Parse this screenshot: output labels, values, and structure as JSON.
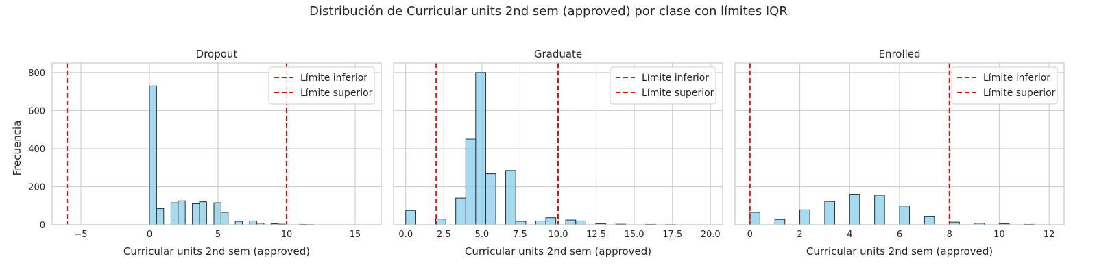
{
  "chart_data": {
    "type": "bar",
    "title": "Distribución de Curricular units 2nd sem (approved) por clase con límites IQR",
    "ylabel": "Frecuencia",
    "ylim": [
      0,
      850
    ],
    "yticks": [
      0,
      200,
      400,
      600,
      800
    ],
    "grid": true,
    "bar_color": "#87CEEB",
    "bar_edge_color": "#2b2b2b",
    "limit_color": "#ff0000",
    "legend": {
      "position": "upper-right",
      "entries": [
        "Límite inferior",
        "Límite superior"
      ]
    },
    "panels": [
      {
        "title": "Dropout",
        "xlabel": "Curricular units 2nd sem (approved)",
        "xlim": [
          -7.1,
          16.9
        ],
        "xticks": [
          -5,
          0,
          5,
          10,
          15
        ],
        "lower_limit": -6,
        "upper_limit": 10,
        "bin_width": 0.52,
        "bars": [
          {
            "x": 0.0,
            "value": 730
          },
          {
            "x": 0.52,
            "value": 85
          },
          {
            "x": 1.57,
            "value": 115
          },
          {
            "x": 2.09,
            "value": 125
          },
          {
            "x": 3.13,
            "value": 110
          },
          {
            "x": 3.65,
            "value": 120
          },
          {
            "x": 4.7,
            "value": 115
          },
          {
            "x": 5.22,
            "value": 65
          },
          {
            "x": 6.26,
            "value": 18
          },
          {
            "x": 7.3,
            "value": 20
          },
          {
            "x": 7.83,
            "value": 8
          },
          {
            "x": 8.87,
            "value": 5
          },
          {
            "x": 9.39,
            "value": 3
          },
          {
            "x": 10.96,
            "value": 2
          },
          {
            "x": 11.48,
            "value": 1
          }
        ]
      },
      {
        "title": "Graduate",
        "xlabel": "Curricular units 2nd sem (approved)",
        "xlim": [
          -0.8,
          20.8
        ],
        "xticks": [
          0.0,
          2.5,
          5.0,
          7.5,
          10.0,
          12.5,
          15.0,
          17.5,
          20.0
        ],
        "lower_limit": 2,
        "upper_limit": 10,
        "bin_width": 0.66,
        "bars": [
          {
            "x": 0.0,
            "value": 75
          },
          {
            "x": 1.97,
            "value": 30
          },
          {
            "x": 3.28,
            "value": 140
          },
          {
            "x": 3.94,
            "value": 450
          },
          {
            "x": 4.59,
            "value": 800
          },
          {
            "x": 5.25,
            "value": 268
          },
          {
            "x": 6.56,
            "value": 285
          },
          {
            "x": 7.22,
            "value": 18
          },
          {
            "x": 8.53,
            "value": 20
          },
          {
            "x": 9.19,
            "value": 37
          },
          {
            "x": 10.5,
            "value": 25
          },
          {
            "x": 11.16,
            "value": 20
          },
          {
            "x": 12.47,
            "value": 6
          },
          {
            "x": 13.78,
            "value": 3
          },
          {
            "x": 15.75,
            "value": 2
          },
          {
            "x": 17.06,
            "value": 1
          }
        ]
      },
      {
        "title": "Enrolled",
        "xlabel": "Curricular units 2nd sem (approved)",
        "xlim": [
          -0.6,
          12.6
        ],
        "xticks": [
          0,
          2,
          4,
          6,
          8,
          10,
          12
        ],
        "lower_limit": 0,
        "upper_limit": 8,
        "bin_width": 0.4,
        "bars": [
          {
            "x": 0.0,
            "value": 65
          },
          {
            "x": 1.0,
            "value": 28
          },
          {
            "x": 2.0,
            "value": 78
          },
          {
            "x": 3.0,
            "value": 122
          },
          {
            "x": 4.0,
            "value": 160
          },
          {
            "x": 5.0,
            "value": 155
          },
          {
            "x": 6.0,
            "value": 98
          },
          {
            "x": 7.0,
            "value": 42
          },
          {
            "x": 8.0,
            "value": 14
          },
          {
            "x": 9.0,
            "value": 8
          },
          {
            "x": 10.0,
            "value": 5
          },
          {
            "x": 11.0,
            "value": 2
          }
        ]
      }
    ]
  }
}
